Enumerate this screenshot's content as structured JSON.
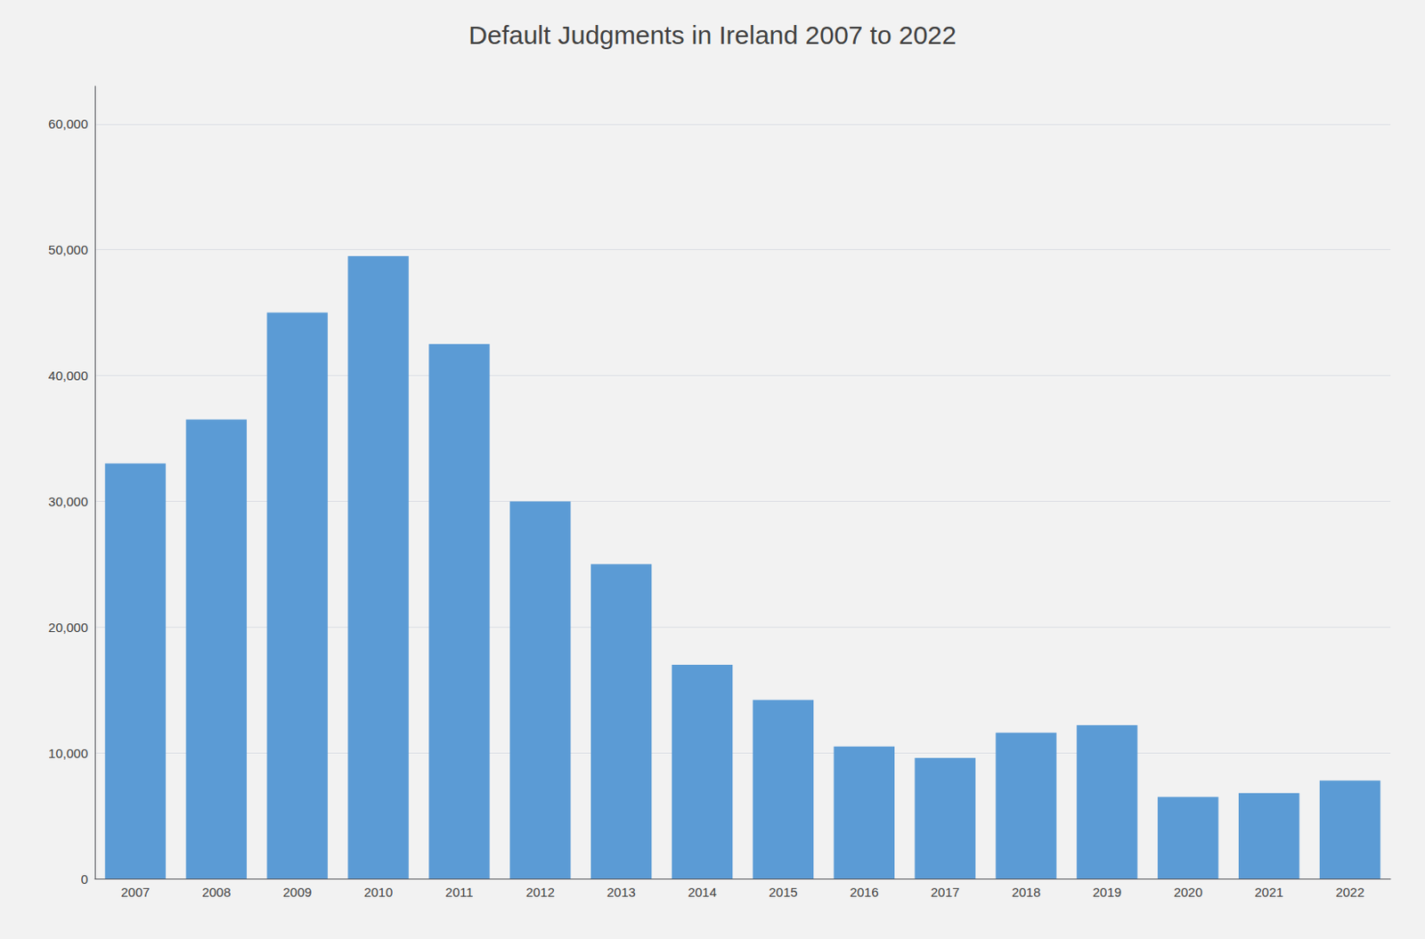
{
  "chart_data": {
    "type": "bar",
    "title": "Default Judgments in Ireland 2007 to 2022",
    "categories": [
      2007,
      2008,
      2009,
      2010,
      2011,
      2012,
      2013,
      2014,
      2015,
      2016,
      2017,
      2018,
      2019,
      2020,
      2021,
      2022
    ],
    "values": [
      33000,
      36500,
      45000,
      49500,
      42500,
      30000,
      25000,
      17000,
      14200,
      10500,
      9600,
      11600,
      12200,
      6500,
      6800,
      7800
    ],
    "color": "#5B9BD5",
    "ylim": [
      0,
      63000
    ],
    "yticks": [
      0,
      {
        "value": 10000,
        "label": "10,000"
      },
      {
        "value": 20000,
        "label": "20,000"
      },
      {
        "value": 30000,
        "label": "30,000"
      },
      {
        "value": 40000,
        "label": "40,000"
      },
      {
        "value": 50000,
        "label": "50,000"
      },
      {
        "value": 60000,
        "label": "60,000"
      }
    ],
    "grid": true
  }
}
